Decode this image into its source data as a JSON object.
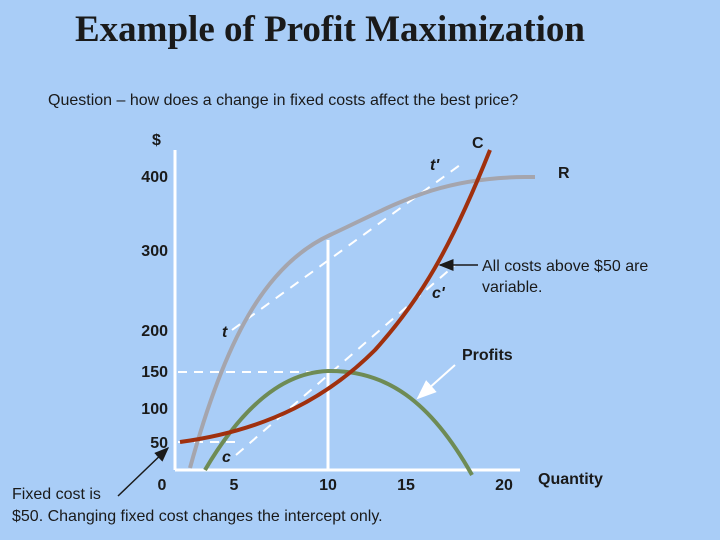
{
  "title": "Example of Profit Maximization",
  "subtitle": "Question – how does a change in fixed costs affect the best price?",
  "axes": {
    "y_label": "$",
    "x_label": "Quantity",
    "y_ticks": [
      "400",
      "300",
      "200",
      "150",
      "100",
      "50"
    ],
    "x_ticks": [
      "0",
      "5",
      "10",
      "15",
      "20"
    ]
  },
  "curve_labels": {
    "cost": "C",
    "revenue": "R",
    "profits": "Profits",
    "tangent_revenue": "t'",
    "tangent_cost": "c'",
    "tangent_t": "t",
    "tangent_c": "c"
  },
  "annotations": {
    "variable_costs_line1": "All costs above $50 are",
    "variable_costs_line2": "variable.",
    "fixed_cost_line1": "Fixed cost is",
    "fixed_cost_line2": "$50. Changing fixed cost changes the intercept only."
  },
  "colors": {
    "background": "#a9cdf7",
    "revenue": "#a5a5ad",
    "cost": "#a0300e",
    "profit": "#6e8b55",
    "tangent": "#ffffff",
    "arrow": "#1a1a1a"
  }
}
